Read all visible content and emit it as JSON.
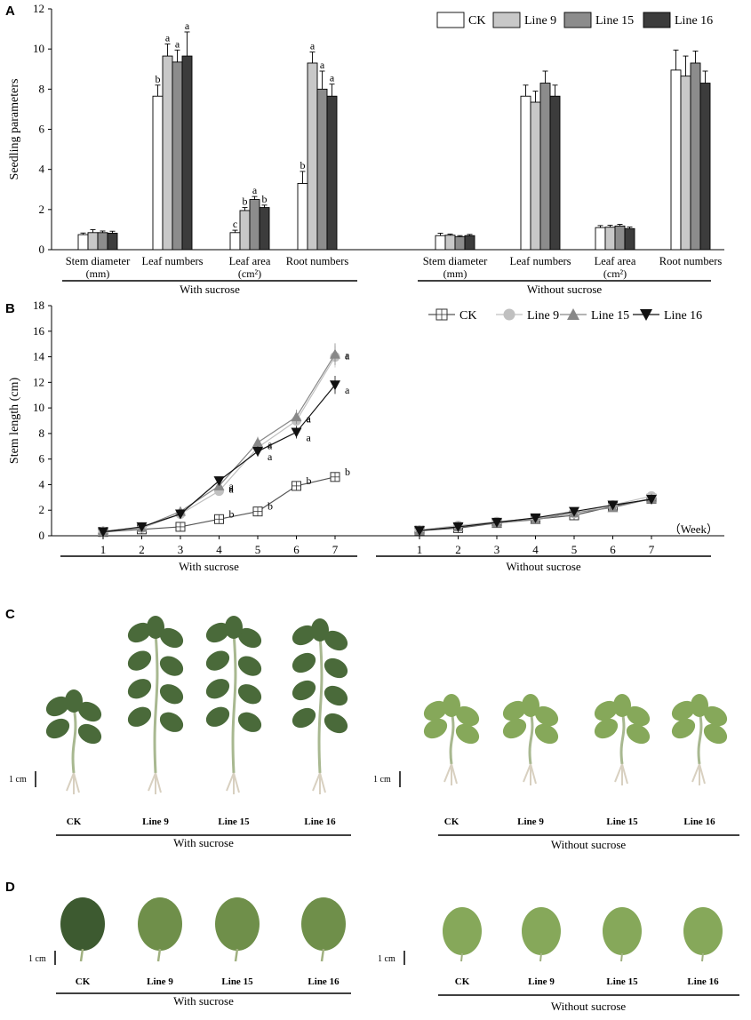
{
  "chart_data": [
    {
      "panel": "A",
      "type": "bar",
      "ylabel": "Seedling parameters",
      "ylim": [
        0,
        12
      ],
      "yticks": [
        0,
        2,
        4,
        6,
        8,
        10,
        12
      ],
      "legend_position": "top-right",
      "legend": [
        "CK",
        "Line 9",
        "Line 15",
        "Line 16"
      ],
      "colors": [
        "#ffffff",
        "#c8c8c8",
        "#8c8c8c",
        "#3c3c3c"
      ],
      "groups": [
        {
          "label": "With  sucrose",
          "categories": [
            {
              "name": "Stem diameter",
              "unit": "(mm)",
              "values": [
                0.75,
                0.85,
                0.85,
                0.82
              ],
              "errors": [
                0.08,
                0.15,
                0.08,
                0.1
              ],
              "letters": [
                "",
                "",
                "",
                ""
              ]
            },
            {
              "name": "Leaf numbers",
              "unit": "",
              "values": [
                7.65,
                9.65,
                9.35,
                9.65
              ],
              "errors": [
                0.55,
                0.6,
                0.6,
                1.2
              ],
              "letters": [
                "b",
                "a",
                "a",
                "a"
              ]
            },
            {
              "name": "Leaf area",
              "unit": "(cm²)",
              "values": [
                0.85,
                1.95,
                2.5,
                2.1
              ],
              "errors": [
                0.12,
                0.15,
                0.15,
                0.12
              ],
              "letters": [
                "c",
                "b",
                "a",
                "b"
              ]
            },
            {
              "name": "Root numbers",
              "unit": "",
              "values": [
                3.3,
                9.3,
                8.0,
                7.65
              ],
              "errors": [
                0.6,
                0.55,
                0.9,
                0.6
              ],
              "letters": [
                "b",
                "a",
                "a",
                "a"
              ]
            }
          ]
        },
        {
          "label": "Without sucrose",
          "categories": [
            {
              "name": "Stem diameter",
              "unit": "(mm)",
              "values": [
                0.7,
                0.72,
                0.65,
                0.7
              ],
              "errors": [
                0.12,
                0.06,
                0.05,
                0.06
              ],
              "letters": [
                "",
                "",
                "",
                ""
              ]
            },
            {
              "name": "Leaf numbers",
              "unit": "",
              "values": [
                7.65,
                7.35,
                8.3,
                7.65
              ],
              "errors": [
                0.55,
                0.55,
                0.6,
                0.55
              ],
              "letters": [
                "",
                "",
                "",
                ""
              ]
            },
            {
              "name": "Leaf area",
              "unit": "(cm²)",
              "values": [
                1.1,
                1.12,
                1.18,
                1.05
              ],
              "errors": [
                0.1,
                0.1,
                0.08,
                0.08
              ],
              "letters": [
                "",
                "",
                "",
                ""
              ]
            },
            {
              "name": "Root numbers",
              "unit": "",
              "values": [
                8.95,
                8.65,
                9.3,
                8.3
              ],
              "errors": [
                1.0,
                1.0,
                0.6,
                0.6
              ],
              "letters": [
                "",
                "",
                "",
                ""
              ]
            }
          ]
        }
      ]
    },
    {
      "panel": "B",
      "type": "line",
      "ylabel": "Stem length (cm)",
      "ylim": [
        0,
        18
      ],
      "yticks": [
        0,
        2,
        4,
        6,
        8,
        10,
        12,
        14,
        16,
        18
      ],
      "x": [
        1,
        2,
        3,
        4,
        5,
        6,
        7
      ],
      "x_unit": "（Week）",
      "legend_position": "top-right",
      "groups": [
        {
          "label": "With  sucrose",
          "series": [
            {
              "name": "CK",
              "values": [
                0.3,
                0.5,
                0.7,
                1.3,
                1.9,
                3.9,
                4.6
              ],
              "letters": [
                "",
                "",
                "",
                "b",
                "b",
                "b",
                "b"
              ]
            },
            {
              "name": "Line 9",
              "values": [
                0.35,
                0.6,
                1.7,
                3.5,
                6.9,
                9.0,
                14.0
              ],
              "letters": [
                "",
                "",
                "",
                "a",
                "a",
                "a",
                "a"
              ]
            },
            {
              "name": "Line 15",
              "values": [
                0.35,
                0.65,
                1.9,
                3.9,
                7.3,
                9.3,
                14.2
              ],
              "letters": [
                "",
                "",
                "",
                "a",
                "a",
                "a",
                "a"
              ]
            },
            {
              "name": "Line 16",
              "values": [
                0.3,
                0.7,
                1.7,
                4.3,
                6.6,
                8.1,
                11.8
              ],
              "letters": [
                "",
                "",
                "",
                "a",
                "a",
                "a",
                "a"
              ]
            }
          ]
        },
        {
          "label": "Without sucrose",
          "series": [
            {
              "name": "CK",
              "values": [
                0.4,
                0.6,
                1.0,
                1.3,
                1.6,
                2.3,
                2.9
              ],
              "letters": []
            },
            {
              "name": "Line 9",
              "values": [
                0.45,
                0.8,
                1.1,
                1.35,
                1.75,
                2.4,
                3.1
              ],
              "letters": []
            },
            {
              "name": "Line 15",
              "values": [
                0.4,
                0.7,
                1.0,
                1.25,
                1.8,
                2.2,
                2.9
              ],
              "letters": []
            },
            {
              "name": "Line 16",
              "values": [
                0.4,
                0.7,
                1.05,
                1.4,
                1.9,
                2.4,
                2.85
              ],
              "letters": []
            }
          ]
        }
      ]
    }
  ],
  "panels": {
    "A": "A",
    "B": "B",
    "C": "C",
    "D": "D"
  },
  "photos": {
    "scale_label": "1 cm",
    "with_label": "With  sucrose",
    "without_label": "Without sucrose",
    "lines": [
      "CK",
      "Line 9",
      "Line 15",
      "Line 16"
    ],
    "plant_color_with": "#4a6a3a",
    "plant_color_without": "#86a85a"
  }
}
